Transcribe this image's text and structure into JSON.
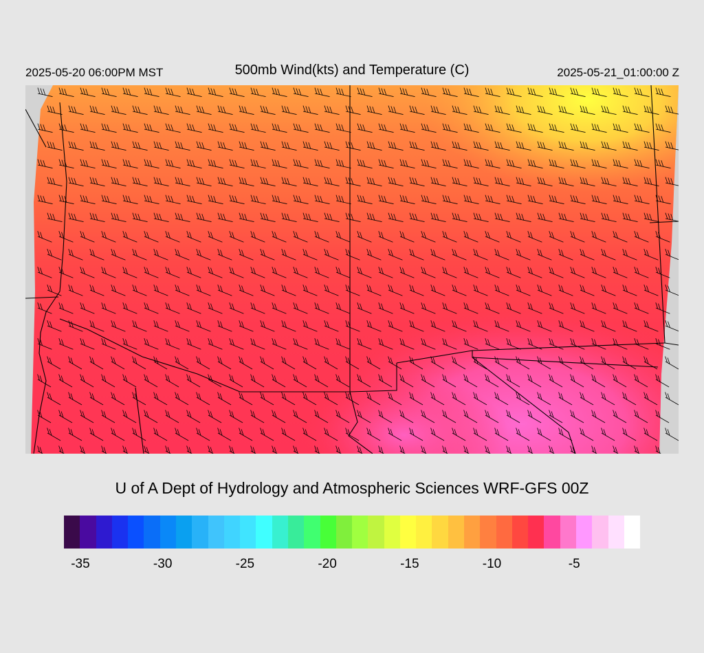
{
  "header": {
    "local_time": "2025-05-20 06:00PM MST",
    "title": "500mb Wind(kts) and Temperature (C)",
    "valid_time": "2025-05-21_01:00:00 Z"
  },
  "credit": "U of A Dept of Hydrology and Atmospheric Sciences WRF-GFS 00Z",
  "colorbar": {
    "colors": [
      "#3a0a4a",
      "#4a0aa0",
      "#2e1ad0",
      "#1a32f0",
      "#0a50ff",
      "#0a6ef8",
      "#0a88f8",
      "#0aa0f0",
      "#28b2f8",
      "#40c4fc",
      "#40d4ff",
      "#40e4ff",
      "#40ffff",
      "#38f0d0",
      "#38ec9a",
      "#40ff70",
      "#48ff38",
      "#80ef3c",
      "#a0ff40",
      "#c0f440",
      "#e0ff40",
      "#ffff40",
      "#fff040",
      "#ffd840",
      "#ffc040",
      "#ffa040",
      "#ff8040",
      "#ff6a40",
      "#ff4840",
      "#ff3050",
      "#ff48a0",
      "#ff78cc",
      "#ff98ff",
      "#ffc0f0",
      "#ffe0ff",
      "#ffffff"
    ],
    "ticks": [
      "-35",
      "-30",
      "-25",
      "-20",
      "-15",
      "-10",
      "-5"
    ],
    "tick_values": [
      -35,
      -30,
      -25,
      -20,
      -15,
      -10,
      -5
    ],
    "min": -36,
    "max": -1
  }
}
